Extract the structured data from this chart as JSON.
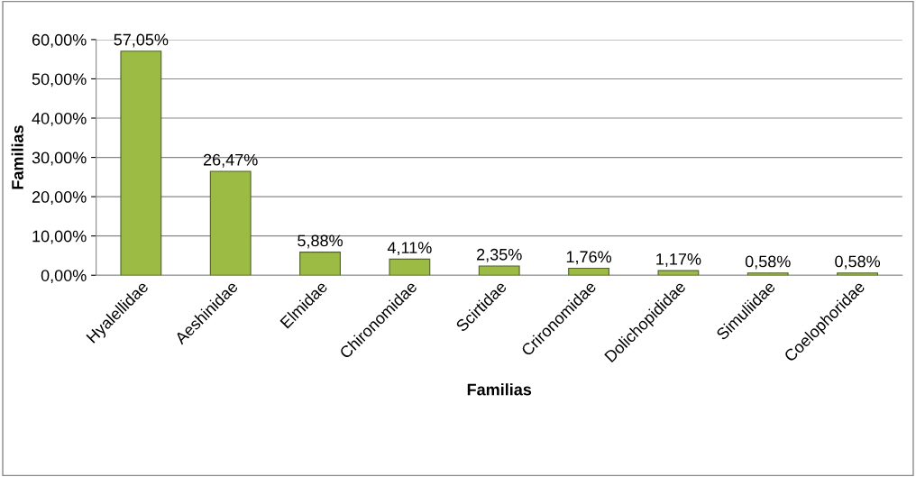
{
  "chart_data": {
    "type": "bar",
    "xlabel": "Familias",
    "ylabel": "Familias",
    "categories": [
      "Hyalellidae",
      "Aeshinidae",
      "Elmidae",
      "Chironomidae",
      "Scirtidae",
      "Crironomidae",
      "Dolichopididae",
      "Simuliidae",
      "Coelophoridae"
    ],
    "values": [
      57.05,
      26.47,
      5.88,
      4.11,
      2.35,
      1.76,
      1.17,
      0.58,
      0.58
    ],
    "value_labels": [
      "57,05%",
      "26,47%",
      "5,88%",
      "4,11%",
      "2,35%",
      "1,76%",
      "1,17%",
      "0,58%",
      "0,58%"
    ],
    "color": "#9bbb44",
    "ylim": [
      0,
      60
    ],
    "yticks": [
      {
        "value": 0,
        "label": "0,00%"
      },
      {
        "value": 10,
        "label": "10,00%"
      },
      {
        "value": 20,
        "label": "20,00%"
      },
      {
        "value": 30,
        "label": "30,00%"
      },
      {
        "value": 40,
        "label": "40,00%"
      },
      {
        "value": 50,
        "label": "50,00%"
      },
      {
        "value": 60,
        "label": "60,00%"
      }
    ],
    "grid": "y",
    "legend": false
  }
}
